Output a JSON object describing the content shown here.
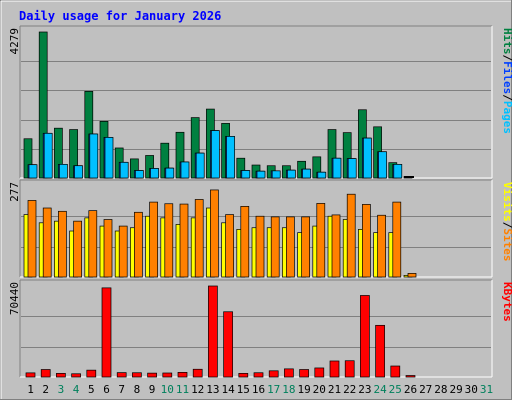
{
  "title": "Daily usage for January 2026",
  "colors": {
    "title": "#0000ff",
    "hits": "#008040",
    "files": "#00c0ff",
    "pages": "#00c0ff",
    "visits": "#ffff00",
    "sites": "#ff8000",
    "kbytes": "#ff0000",
    "weekend": "#00805c",
    "panel_bg": "#c0c0c0",
    "grid": "#808080"
  },
  "legends": {
    "top": [
      {
        "text": "Hits",
        "color": "#008040"
      },
      {
        "text": "/",
        "color": "#000000"
      },
      {
        "text": "Files",
        "color": "#0040ff"
      },
      {
        "text": "/",
        "color": "#000000"
      },
      {
        "text": "Pages",
        "color": "#00c0ff"
      }
    ],
    "middle": [
      {
        "text": "Visits",
        "color": "#ffff00"
      },
      {
        "text": "/",
        "color": "#000000"
      },
      {
        "text": "Sites",
        "color": "#ff8000"
      }
    ],
    "bottom": [
      {
        "text": "KBytes",
        "color": "#ff0000"
      }
    ]
  },
  "chart_data": [
    {
      "type": "bar",
      "name": "hits-files-pages",
      "categories": [
        "1",
        "2",
        "3",
        "4",
        "5",
        "6",
        "7",
        "8",
        "9",
        "10",
        "11",
        "12",
        "13",
        "14",
        "15",
        "16",
        "17",
        "18",
        "19",
        "20",
        "21",
        "22",
        "23",
        "24",
        "25",
        "26",
        "27",
        "28",
        "29",
        "30",
        "31"
      ],
      "ymax_label": "4279",
      "ylim": [
        0,
        4279
      ],
      "series": [
        {
          "name": "Hits",
          "values": [
            1150,
            4279,
            1460,
            1420,
            2540,
            1660,
            880,
            560,
            660,
            1020,
            1340,
            1770,
            2020,
            1600,
            580,
            380,
            360,
            360,
            490,
            620,
            1420,
            1330,
            2000,
            1500,
            450,
            40,
            0,
            0,
            0,
            0,
            0
          ]
        },
        {
          "name": "Files",
          "values": [
            390,
            1310,
            400,
            360,
            1290,
            1190,
            460,
            220,
            280,
            290,
            470,
            730,
            1390,
            1220,
            220,
            200,
            210,
            230,
            260,
            170,
            580,
            570,
            1170,
            770,
            400,
            0,
            0,
            0,
            0,
            0,
            0
          ]
        },
        {
          "name": "Pages",
          "values": [
            390,
            1310,
            400,
            360,
            1290,
            1190,
            460,
            220,
            280,
            290,
            470,
            730,
            1390,
            1220,
            220,
            200,
            210,
            230,
            260,
            170,
            580,
            570,
            1170,
            770,
            400,
            0,
            0,
            0,
            0,
            0,
            0
          ]
        }
      ]
    },
    {
      "type": "bar",
      "name": "visits-sites",
      "categories": [
        "1",
        "2",
        "3",
        "4",
        "5",
        "6",
        "7",
        "8",
        "9",
        "10",
        "11",
        "12",
        "13",
        "14",
        "15",
        "16",
        "17",
        "18",
        "19",
        "20",
        "21",
        "22",
        "23",
        "24",
        "25",
        "26",
        "27",
        "28",
        "29",
        "30",
        "31"
      ],
      "ymax_label": "277",
      "ylim": [
        0,
        277
      ],
      "series": [
        {
          "name": "Visits",
          "values": [
            190,
            165,
            170,
            140,
            180,
            155,
            140,
            150,
            185,
            180,
            160,
            180,
            210,
            165,
            145,
            150,
            150,
            150,
            135,
            155,
            185,
            175,
            145,
            135,
            135,
            5,
            0,
            0,
            0,
            0,
            0
          ]
        },
        {
          "name": "Sites",
          "values": [
            233,
            210,
            200,
            170,
            202,
            175,
            155,
            197,
            228,
            223,
            222,
            236,
            265,
            190,
            215,
            185,
            183,
            183,
            183,
            224,
            189,
            252,
            221,
            188,
            228,
            11,
            0,
            0,
            0,
            0,
            0
          ]
        }
      ]
    },
    {
      "type": "bar",
      "name": "kbytes",
      "categories": [
        "1",
        "2",
        "3",
        "4",
        "5",
        "6",
        "7",
        "8",
        "9",
        "10",
        "11",
        "12",
        "13",
        "14",
        "15",
        "16",
        "17",
        "18",
        "19",
        "20",
        "21",
        "22",
        "23",
        "24",
        "25",
        "26",
        "27",
        "28",
        "29",
        "30",
        "31"
      ],
      "ymax_label": "70440",
      "ylim": [
        0,
        70440
      ],
      "series": [
        {
          "name": "KBytes",
          "values": [
            3200,
            5800,
            2800,
            2500,
            5300,
            69000,
            3400,
            3300,
            3000,
            3100,
            3600,
            6000,
            70440,
            50500,
            2800,
            3300,
            4800,
            6300,
            5800,
            7000,
            12400,
            12600,
            63100,
            40000,
            8500,
            500,
            0,
            0,
            0,
            0,
            0
          ]
        }
      ]
    }
  ],
  "x_labels": [
    {
      "text": "1",
      "weekend": false
    },
    {
      "text": "2",
      "weekend": false
    },
    {
      "text": "3",
      "weekend": true
    },
    {
      "text": "4",
      "weekend": true
    },
    {
      "text": "5",
      "weekend": false
    },
    {
      "text": "6",
      "weekend": false
    },
    {
      "text": "7",
      "weekend": false
    },
    {
      "text": "8",
      "weekend": false
    },
    {
      "text": "9",
      "weekend": false
    },
    {
      "text": "10",
      "weekend": true
    },
    {
      "text": "11",
      "weekend": true
    },
    {
      "text": "12",
      "weekend": false
    },
    {
      "text": "13",
      "weekend": false
    },
    {
      "text": "14",
      "weekend": false
    },
    {
      "text": "15",
      "weekend": false
    },
    {
      "text": "16",
      "weekend": false
    },
    {
      "text": "17",
      "weekend": true
    },
    {
      "text": "18",
      "weekend": true
    },
    {
      "text": "19",
      "weekend": false
    },
    {
      "text": "20",
      "weekend": false
    },
    {
      "text": "21",
      "weekend": false
    },
    {
      "text": "22",
      "weekend": false
    },
    {
      "text": "23",
      "weekend": false
    },
    {
      "text": "24",
      "weekend": true
    },
    {
      "text": "25",
      "weekend": true
    },
    {
      "text": "26",
      "weekend": false
    },
    {
      "text": "27",
      "weekend": false
    },
    {
      "text": "28",
      "weekend": false
    },
    {
      "text": "29",
      "weekend": false
    },
    {
      "text": "30",
      "weekend": false
    },
    {
      "text": "31",
      "weekend": true
    }
  ]
}
